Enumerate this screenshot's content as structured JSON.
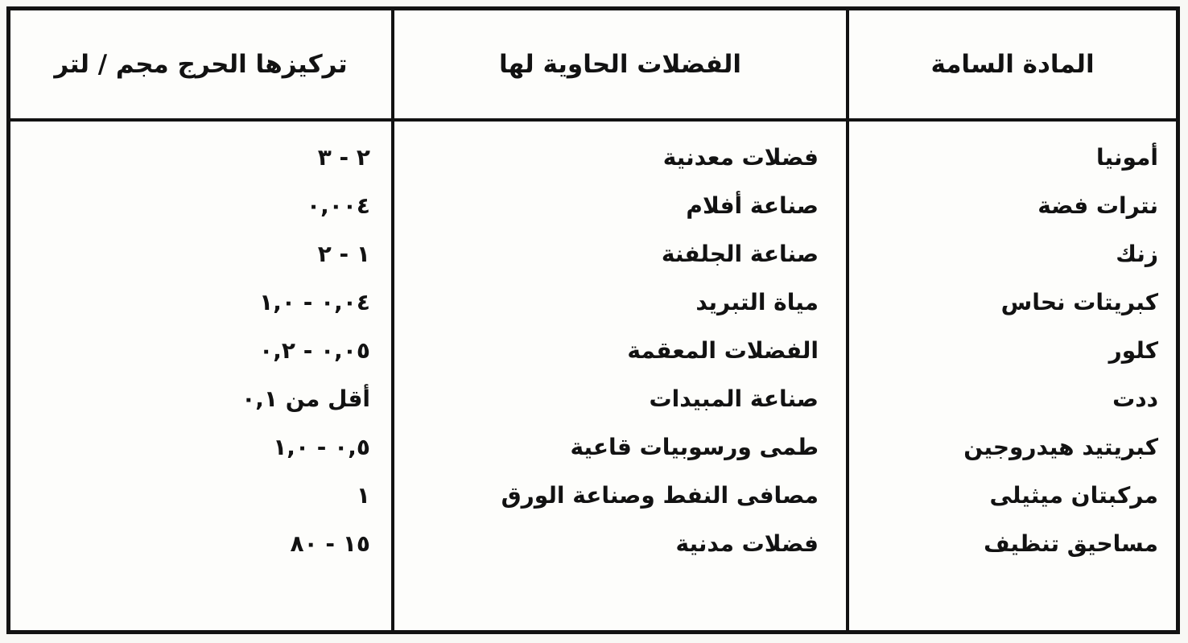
{
  "table": {
    "headers": {
      "substance": "المادة السامة",
      "wastes": "الفضلات الحاوية لها",
      "concentration": "تركيزها الحرج مجم / لتر"
    },
    "rows": [
      {
        "substance": "أمونيا",
        "wastes": "فضلات معدنية",
        "concentration": "٢ - ٣"
      },
      {
        "substance": "نترات فضة",
        "wastes": "صناعة أفلام",
        "concentration": "٠,٠٠٤"
      },
      {
        "substance": "زنك",
        "wastes": "صناعة الجلفنة",
        "concentration": "١ - ٢"
      },
      {
        "substance": "كبريتات نحاس",
        "wastes": "مياة التبريد",
        "concentration": "٠,٠٤ - ١,٠"
      },
      {
        "substance": "كلور",
        "wastes": "الفضلات المعقمة",
        "concentration": "٠,٠٥ - ٠,٢"
      },
      {
        "substance": "ددت",
        "wastes": "صناعة المبيدات",
        "concentration": "أقل من ٠,١"
      },
      {
        "substance": "كبريتيد هيدروجين",
        "wastes": "طمى ورسوبيات قاعية",
        "concentration": "٠,٥ - ١,٠"
      },
      {
        "substance": "مركبتان ميثيلى",
        "wastes": "مصافى النفط وصناعة الورق",
        "concentration": "١"
      },
      {
        "substance": "مساحيق تنظيف",
        "wastes": "فضلات مدنية",
        "concentration": "١٥ - ٨٠"
      }
    ],
    "colors": {
      "border": "#121212",
      "text": "#121212",
      "background": "#fdfdfb",
      "page_background": "#f8f8f5"
    }
  }
}
